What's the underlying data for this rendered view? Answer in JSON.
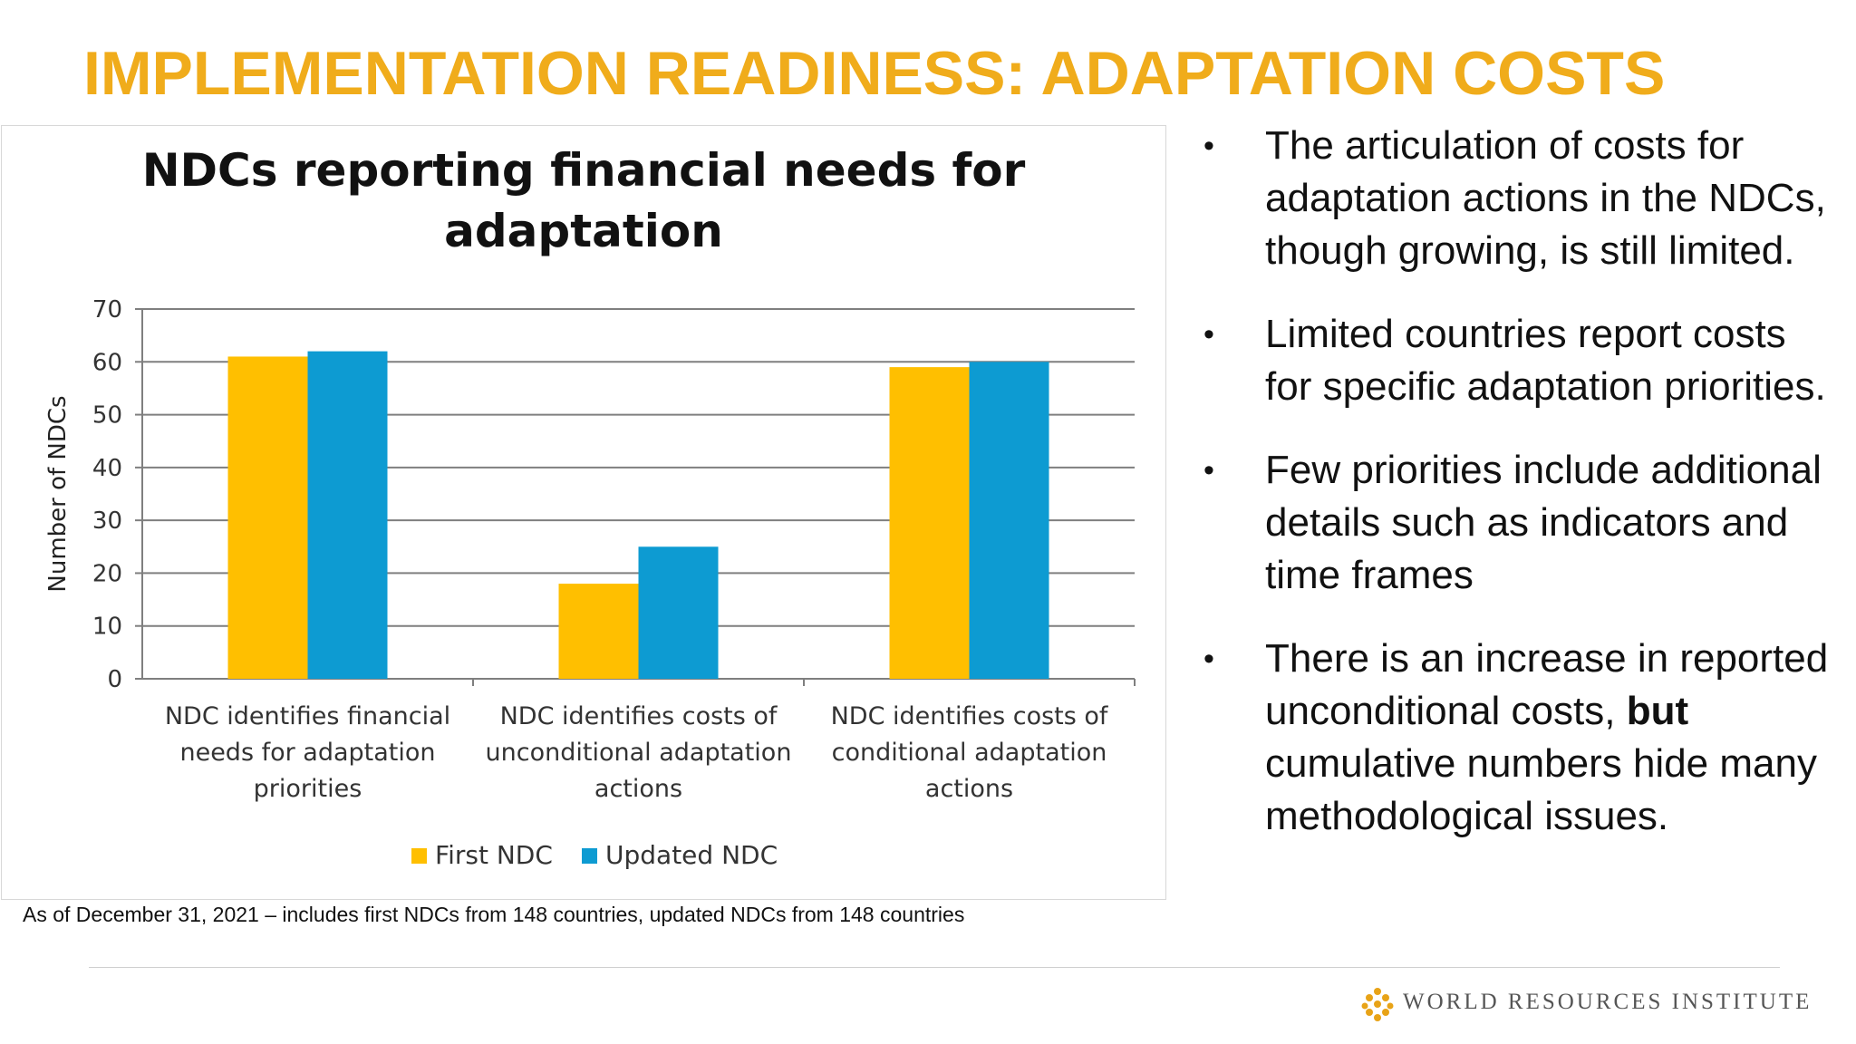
{
  "slide": {
    "title": "IMPLEMENTATION READINESS: ADAPTATION COSTS",
    "note": "As of December 31, 2021 – includes first NDCs from 148 countries, updated NDCs from 148 countries",
    "bullets": [
      {
        "text": "The articulation of costs for adaptation actions in the NDCs, though growing, is still limited."
      },
      {
        "text": "Limited countries report costs for specific adaptation priorities."
      },
      {
        "text": "Few priorities include additional details such as indicators and time frames"
      },
      {
        "pre": "There is an increase in reported unconditional costs, ",
        "bold": "but",
        "post": " cumulative numbers hide many methodological issues."
      }
    ],
    "logo_text": "WORLD RESOURCES INSTITUTE",
    "logo_icon": "wri-logo-icon"
  },
  "chart_data": {
    "type": "bar",
    "title": "NDCs reporting financial needs for adaptation",
    "ylabel": "Number of NDCs",
    "xlabel": "",
    "ylim": [
      0,
      70
    ],
    "yticks": [
      0,
      10,
      20,
      30,
      40,
      50,
      60,
      70
    ],
    "grid": true,
    "legend_position": "bottom",
    "categories": [
      [
        "NDC identifies financial",
        "needs for adaptation",
        "priorities"
      ],
      [
        "NDC identifies costs of",
        "unconditional adaptation",
        "actions"
      ],
      [
        "NDC identifies costs of",
        "conditional adaptation",
        "actions"
      ]
    ],
    "series": [
      {
        "name": "First NDC",
        "color": "#ffbf00",
        "values": [
          61,
          18,
          59
        ]
      },
      {
        "name": "Updated NDC",
        "color": "#0d9bd2",
        "values": [
          62,
          25,
          60
        ]
      }
    ]
  }
}
